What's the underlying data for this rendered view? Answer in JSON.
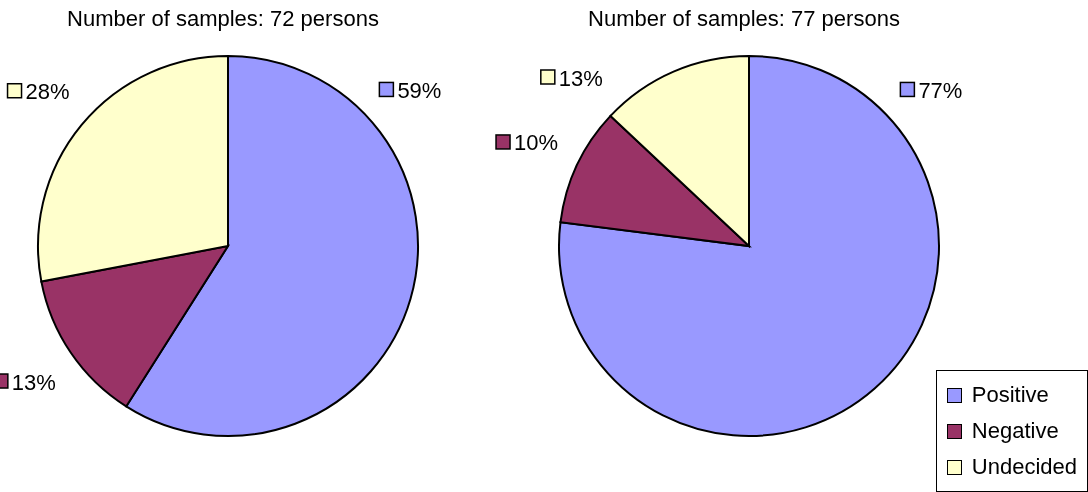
{
  "chart_data": [
    {
      "type": "pie",
      "title": "Number of samples: 72 persons",
      "categories": [
        null,
        null,
        null
      ],
      "values": [
        59,
        13,
        28
      ],
      "colors": [
        "#9999ff",
        "#993366",
        "#ffffcc"
      ],
      "value_labels": [
        "59%",
        "13%",
        "28%"
      ],
      "legend": false
    },
    {
      "type": "pie",
      "title": "Number of samples: 77 persons",
      "categories": [
        "Positive",
        "Negative",
        "Undecided"
      ],
      "values": [
        77,
        10,
        13
      ],
      "colors": [
        "#9999ff",
        "#993366",
        "#ffffcc"
      ],
      "value_labels": [
        "77%",
        "10%",
        "13%"
      ],
      "legend": "bottom right"
    }
  ]
}
